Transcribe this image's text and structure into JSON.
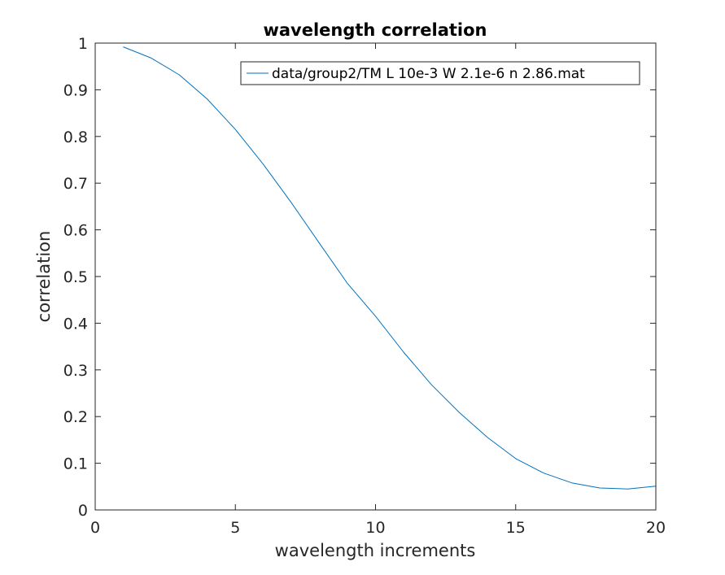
{
  "chart_data": {
    "type": "line",
    "title": "wavelength correlation",
    "xlabel": "wavelength increments",
    "ylabel": "correlation",
    "xlim": [
      0,
      20
    ],
    "ylim": [
      0,
      1
    ],
    "xticks": [
      0,
      5,
      10,
      15,
      20
    ],
    "xtick_labels": [
      "0",
      "5",
      "10",
      "15",
      "20"
    ],
    "yticks": [
      0,
      0.1,
      0.2,
      0.3,
      0.4,
      0.5,
      0.6,
      0.7,
      0.8,
      0.9,
      1
    ],
    "ytick_labels": [
      "0",
      "0.1",
      "0.2",
      "0.3",
      "0.4",
      "0.5",
      "0.6",
      "0.7",
      "0.8",
      "0.9",
      "1"
    ],
    "grid": false,
    "box": true,
    "legend_placement": "top-right",
    "series": [
      {
        "name": "data/group2/TM L 10e-3 W 2.1e-6 n 2.86.mat",
        "color": "#0072BD",
        "x": [
          1,
          2,
          3,
          4,
          5,
          6,
          7,
          8,
          9,
          10,
          11,
          12,
          13,
          14,
          15,
          16,
          17,
          18,
          19,
          20
        ],
        "y": [
          0.992,
          0.968,
          0.932,
          0.88,
          0.815,
          0.74,
          0.658,
          0.571,
          0.485,
          0.415,
          0.338,
          0.268,
          0.208,
          0.155,
          0.11,
          0.079,
          0.058,
          0.047,
          0.045,
          0.051
        ]
      }
    ]
  }
}
